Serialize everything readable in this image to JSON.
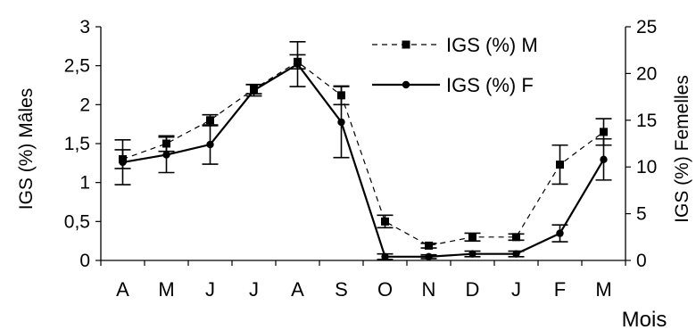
{
  "chart_data": {
    "type": "line",
    "categories": [
      "A",
      "M",
      "J",
      "J",
      "A",
      "S",
      "O",
      "N",
      "D",
      "J",
      "F",
      "M"
    ],
    "xlabel": "Mois",
    "ylabel_left": "IGS (%) Mâles",
    "ylabel_right": "IGS (%) Femelles",
    "ylim_left": [
      0,
      3
    ],
    "ylim_right": [
      0,
      25
    ],
    "yticks_left": [
      "0",
      "0,5",
      "1",
      "1,5",
      "2",
      "2,5",
      "3"
    ],
    "yticks_right": [
      "0",
      "5",
      "10",
      "15",
      "20",
      "25"
    ],
    "legend_position": "top-right",
    "series": [
      {
        "name": "IGS (%) M",
        "axis": "left",
        "style": "dashed",
        "marker": "square",
        "values": [
          1.3,
          1.5,
          1.8,
          2.2,
          2.55,
          2.12,
          0.5,
          0.19,
          0.3,
          0.3,
          1.23,
          1.65
        ],
        "errors": [
          0.12,
          0.1,
          0.07,
          0.06,
          0.09,
          0.12,
          0.08,
          0.03,
          0.05,
          0.04,
          0.25,
          0.17
        ]
      },
      {
        "name": "IGS (%) F",
        "axis": "right",
        "style": "solid",
        "marker": "circle",
        "values": [
          10.5,
          11.3,
          12.4,
          18.2,
          21.0,
          14.8,
          0.4,
          0.4,
          0.7,
          0.7,
          2.9,
          10.8
        ],
        "errors": [
          2.4,
          1.9,
          2.1,
          0.6,
          2.4,
          3.8,
          0.3,
          0.2,
          0.3,
          0.3,
          0.9,
          2.2
        ]
      }
    ]
  }
}
